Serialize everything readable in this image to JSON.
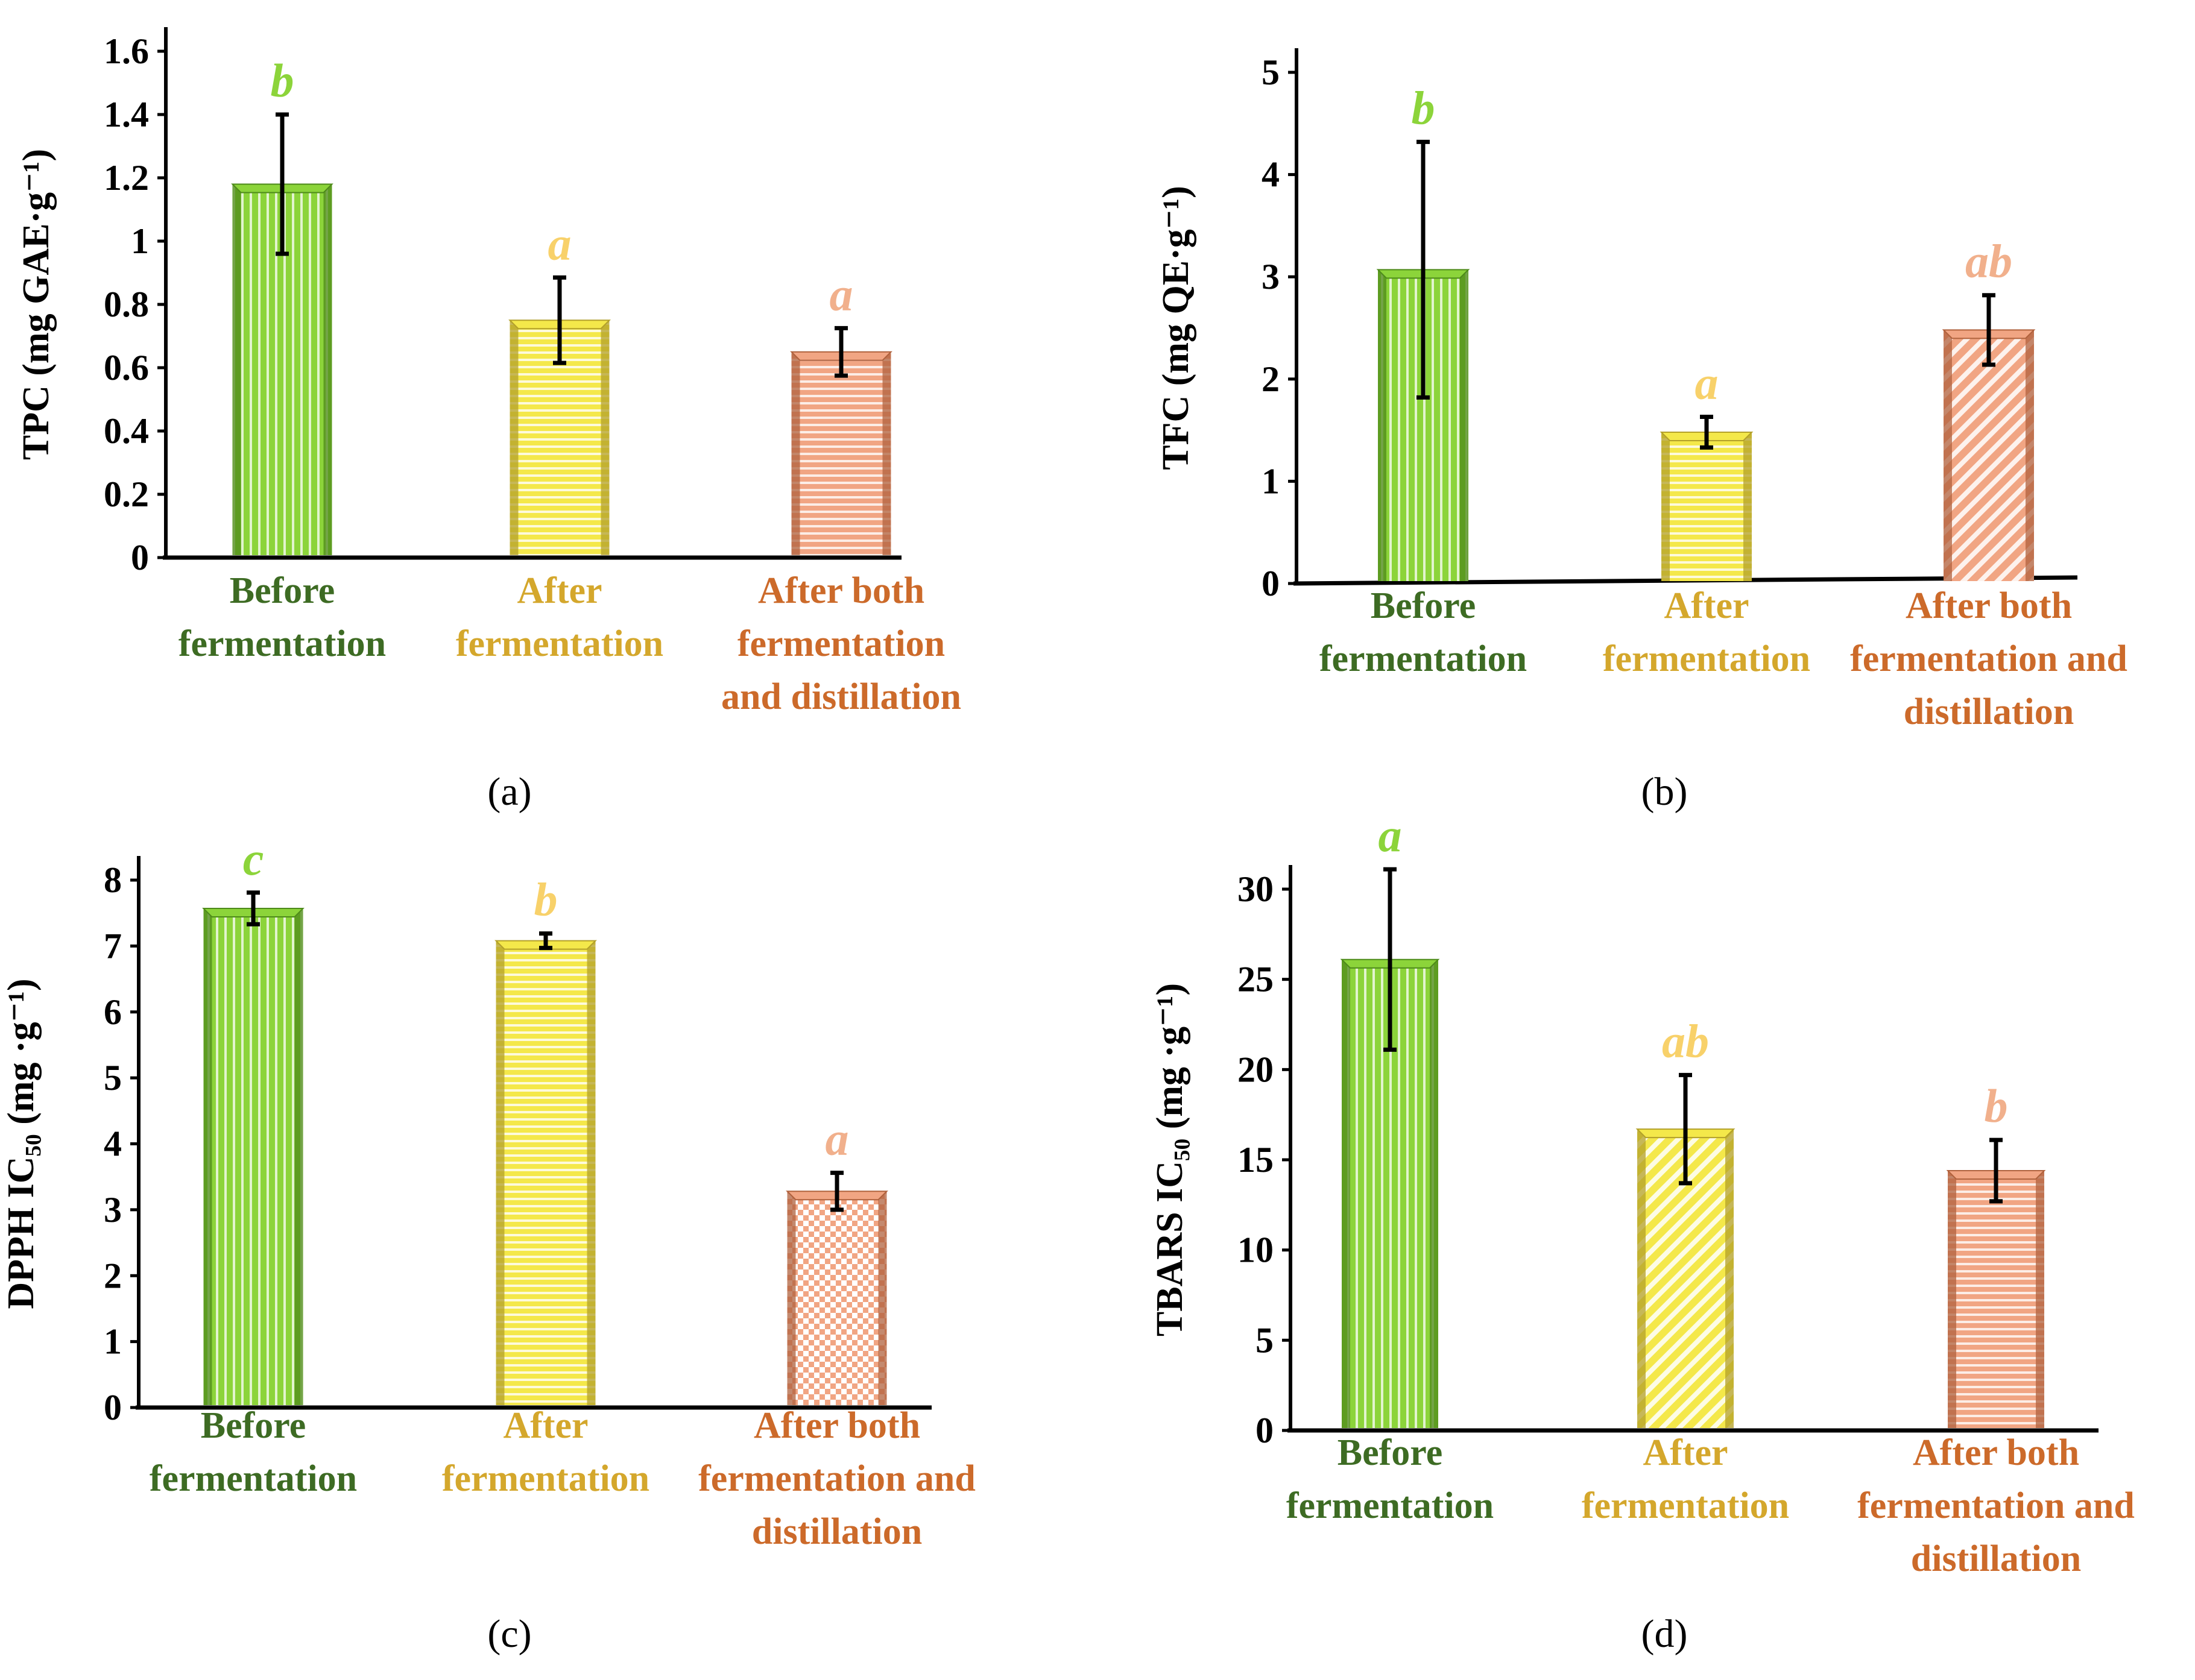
{
  "colors": {
    "green_bar": "#8cd43a",
    "green_dark": "#4d8a1a",
    "yellow_bar": "#f4e84a",
    "yellow_dark": "#b3a02a",
    "orange_bar": "#f1a583",
    "orange_dark": "#b0623d",
    "label_green": "#3d6b23",
    "label_yellow": "#d4a72c",
    "label_orange": "#cc6a2a",
    "letter_green": "#8cd43a",
    "letter_yellow": "#f8d16a",
    "letter_orange": "#f1b08c"
  },
  "chart_data": [
    {
      "type": "bar",
      "panel_label": "(a)",
      "ylabel": "TPC (mg GAE·g⁻¹)",
      "ylim": [
        0,
        1.6
      ],
      "yticks": [
        "0",
        "0.2",
        "0.4",
        "0.6",
        "0.8",
        "1",
        "1.2",
        "1.4",
        "1.6"
      ],
      "categories": [
        {
          "lines": [
            "Before",
            "fermentation"
          ]
        },
        {
          "lines": [
            "After",
            "fermentation"
          ]
        },
        {
          "lines": [
            "After both",
            "fermentation",
            "and distillation"
          ]
        }
      ],
      "values": [
        1.18,
        0.75,
        0.65
      ],
      "errors": [
        0.22,
        0.135,
        0.075
      ],
      "letters": [
        "b",
        "a",
        "a"
      ],
      "patterns": [
        "vertical",
        "horizontal",
        "horizontal"
      ],
      "grid": false
    },
    {
      "type": "bar",
      "panel_label": "(b)",
      "ylabel": "TFC (mg QE·g⁻¹)",
      "ylim": [
        0,
        5
      ],
      "yticks": [
        "0",
        "1",
        "2",
        "3",
        "4",
        "5"
      ],
      "categories": [
        {
          "lines": [
            "Before",
            "fermentation"
          ]
        },
        {
          "lines": [
            "After",
            "fermentation"
          ]
        },
        {
          "lines": [
            "After both",
            "fermentation and",
            "distillation"
          ]
        }
      ],
      "values": [
        3.07,
        1.48,
        2.48
      ],
      "errors": [
        1.25,
        0.15,
        0.34
      ],
      "letters": [
        "b",
        "a",
        "ab"
      ],
      "patterns": [
        "vertical",
        "horizontal",
        "diagonal"
      ],
      "grid": false
    },
    {
      "type": "bar",
      "panel_label": "(c)",
      "ylabel": "DPPH  IC₅₀ (mg ·g⁻¹)",
      "ylim": [
        0,
        8
      ],
      "yticks": [
        "0",
        "1",
        "2",
        "3",
        "4",
        "5",
        "6",
        "7",
        "8"
      ],
      "categories": [
        {
          "lines": [
            "Before",
            "fermentation"
          ]
        },
        {
          "lines": [
            "After",
            "fermentation"
          ]
        },
        {
          "lines": [
            "After both",
            "fermentation and",
            "distillation"
          ]
        }
      ],
      "values": [
        7.57,
        7.08,
        3.28
      ],
      "errors": [
        0.24,
        0.11,
        0.28
      ],
      "letters": [
        "c",
        "b",
        "a"
      ],
      "patterns": [
        "vertical",
        "horizontal",
        "checker"
      ],
      "grid": false
    },
    {
      "type": "bar",
      "panel_label": "(d)",
      "ylabel": "TBARS  IC₅₀ (mg ·g⁻¹)",
      "ylim": [
        0,
        30
      ],
      "yticks": [
        "0",
        "5",
        "10",
        "15",
        "20",
        "25",
        "30"
      ],
      "categories": [
        {
          "lines": [
            "Before",
            "fermentation"
          ]
        },
        {
          "lines": [
            "After",
            "fermentation"
          ]
        },
        {
          "lines": [
            "After both",
            "fermentation and",
            "distillation"
          ]
        }
      ],
      "values": [
        26.1,
        16.7,
        14.4
      ],
      "errors": [
        5.0,
        3.0,
        1.7
      ],
      "letters": [
        "a",
        "ab",
        "b"
      ],
      "patterns": [
        "vertical",
        "diagonal",
        "horizontal"
      ],
      "grid": false
    }
  ]
}
